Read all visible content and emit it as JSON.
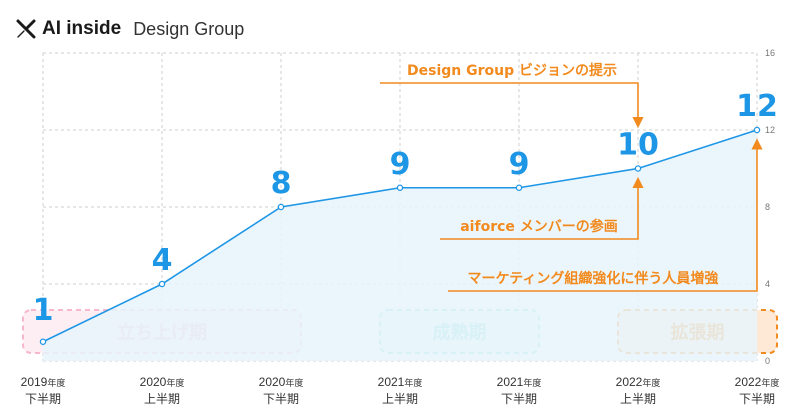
{
  "brand": {
    "company": "AI inside",
    "sub": "Design Group",
    "icon": "x-logo-icon"
  },
  "colors": {
    "line": "#1e96e6",
    "area": "#e8f4fc",
    "annotation": "#f28a1e",
    "phase1": "#f7b8cf",
    "phase2": "#7edbd6",
    "phase3": "#f28a1e"
  },
  "chart_data": {
    "type": "area",
    "categories": [
      [
        "2019年度",
        "下半期"
      ],
      [
        "2020年度",
        "上半期"
      ],
      [
        "2020年度",
        "下半期"
      ],
      [
        "2021年度",
        "上半期"
      ],
      [
        "2021年度",
        "下半期"
      ],
      [
        "2022年度",
        "上半期"
      ],
      [
        "2022年度",
        "下半期"
      ]
    ],
    "values": [
      1,
      4,
      8,
      9,
      9,
      10,
      12
    ],
    "ylim": [
      0,
      16
    ],
    "yticks": [
      0,
      4,
      8,
      12,
      16
    ],
    "grid": true,
    "annotations": [
      {
        "text": "Design Group ビジョンの提示",
        "target_index": 5
      },
      {
        "text": "aiforce メンバーの参画",
        "target_index": 5
      },
      {
        "text": "マーケティング組織強化に伴う人員増強",
        "target_index": 6
      }
    ],
    "phases": [
      {
        "label": "立ち上げ期",
        "from_index": 0,
        "to_index": 2
      },
      {
        "label": "成熟期",
        "from_index": 3,
        "to_index": 4
      },
      {
        "label": "拡張期",
        "from_index": 5,
        "to_index": 6
      }
    ]
  }
}
